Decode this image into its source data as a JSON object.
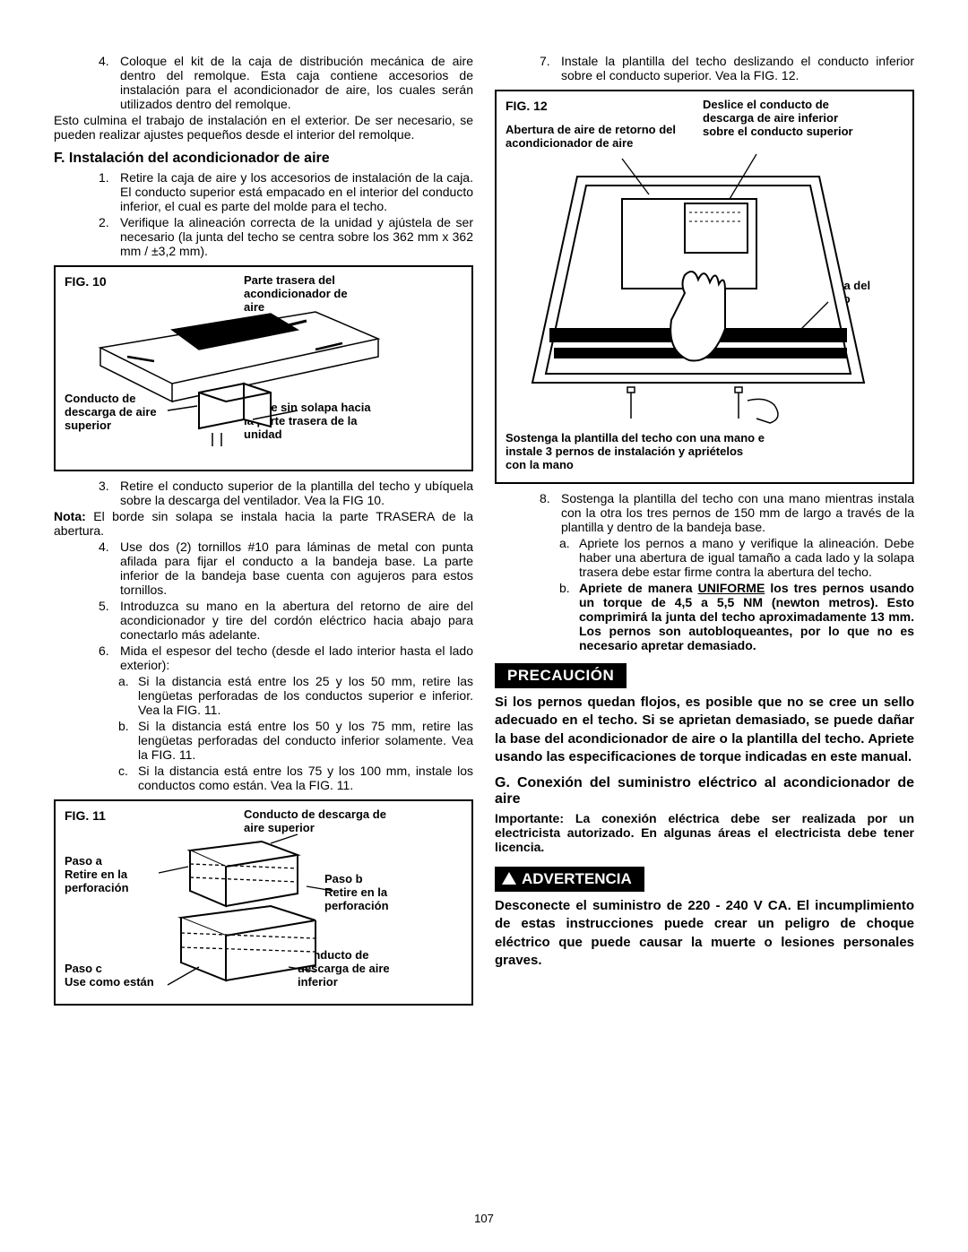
{
  "pageNumber": "107",
  "left": {
    "list4": {
      "num": "4.",
      "text": "Coloque el kit de la caja de distribución mecánica de aire dentro del remolque. Esta caja contiene accesorios de instalación para el acondicionador de aire, los cuales serán utilizados dentro del remolque."
    },
    "paraAfter4": "Esto culmina el trabajo de instalación en el exterior. De ser necesario, se pueden realizar ajustes pequeños desde el interior del remolque.",
    "sectionF": "F. Instalación del acondicionador de aire",
    "f1": {
      "num": "1.",
      "text": "Retire la caja de aire y los accesorios de instalación de la caja. El conducto superior está empacado en el interior del conducto inferior, el cual es parte del molde para el techo."
    },
    "f2": {
      "num": "2.",
      "text": "Verifique la alineación correcta de la unidad y ajústela de ser necesario (la junta del techo se centra sobre los 362 mm x 362 mm / ±3,2 mm)."
    },
    "fig10": {
      "title": "FIG. 10",
      "lblRear": "Parte trasera del acondicionador de aire",
      "lblDuct": "Conducto de descarga de aire superior",
      "lblEdge": "Borde sin solapa hacia la parte trasera de la unidad"
    },
    "f3": {
      "num": "3.",
      "text": "Retire el conducto superior de la plantilla del techo y ubíquela sobre la descarga del ventilador. Vea la FIG 10."
    },
    "nota": "Nota: El borde sin solapa se instala hacia la parte TRASERA de la abertura.",
    "f4": {
      "num": "4.",
      "text": "Use dos (2) tornillos #10 para láminas de metal con punta afilada para fijar el conducto a la bandeja base. La parte inferior de la bandeja base cuenta con agujeros para estos tornillos."
    },
    "f5": {
      "num": "5.",
      "text": "Introduzca su mano en la abertura del retorno de aire del acondicionador y tire del cordón eléctrico hacia abajo para conectarlo más adelante."
    },
    "f6": {
      "num": "6.",
      "text": "Mida el espesor del techo (desde el lado interior hasta el lado exterior):"
    },
    "f6a": {
      "letter": "a.",
      "text": "Si la distancia está entre los 25 y los 50 mm, retire las lengüetas perforadas de los conductos superior e inferior. Vea la FIG. 11."
    },
    "f6b": {
      "letter": "b.",
      "text": "Si la distancia está entre los 50 y los 75 mm, retire las lengüetas perforadas del conducto inferior solamente. Vea la FIG. 11."
    },
    "f6c": {
      "letter": "c.",
      "text": "Si la distancia está entre los 75 y los 100 mm, instale los conductos como están. Vea la FIG. 11."
    },
    "fig11": {
      "title": "FIG. 11",
      "lblUpper": "Conducto de descarga de aire superior",
      "lblA": "Paso a\nRetire en la perforación",
      "lblB": "Paso b\nRetire en la perforación",
      "lblC": "Paso c\nUse como están",
      "lblLower": "Conducto de descarga de aire inferior"
    }
  },
  "right": {
    "f7": {
      "num": "7.",
      "text": "Instale la plantilla del techo deslizando el conducto inferior sobre el conducto superior. Vea la FIG. 12."
    },
    "fig12": {
      "title": "FIG. 12",
      "lblReturn": "Abertura de aire de retorno del acondicionador de aire",
      "lblSlide": "Deslice el conducto de descarga de aire inferior sobre el conducto superior",
      "lblGasket": "Junta del techo",
      "lblHold": "Sostenga la plantilla del techo con una mano e instale 3 pernos de instalación y apriételos con la mano"
    },
    "f8": {
      "num": "8.",
      "text": "Sostenga la plantilla del techo con una mano mientras instala con la otra los tres pernos de 150 mm de largo a través de la plantilla y dentro de la bandeja base."
    },
    "f8a": {
      "letter": "a.",
      "text": "Apriete los pernos a mano y verifique la alineación. Debe haber una abertura de igual tamaño a cada lado y la solapa trasera debe estar firme contra la abertura del techo."
    },
    "f8b": {
      "letter": "b.",
      "textPre": "Apriete de manera ",
      "uniforme": "UNIFORME",
      "textPost": " los tres pernos usando un torque de 4,5 a 5,5 NM (newton metros). Esto comprimirá la junta del techo aproximadamente 13 mm. Los pernos son autobloqueantes, por lo que no es necesario apretar demasiado."
    },
    "precaucion": "PRECAUCIÓN",
    "precaucionText": "Si los pernos quedan flojos, es posible que no se cree un sello adecuado en el techo. Si se aprietan demasiado, se puede dañar la base del acondicionador de aire o la plantilla del techo. Apriete usando las especificaciones de torque indicadas en este manual.",
    "sectionG": "G. Conexión del suministro eléctrico al acondicionador de aire",
    "importante": "Importante: La conexión eléctrica debe ser realizada por un electricista autorizado. En algunas áreas el electricista debe tener licencia.",
    "advertencia": "ADVERTENCIA",
    "advertenciaText": "Desconecte el suministro de 220 - 240 V CA. El incumplimiento de estas instrucciones puede crear un peligro de choque eléctrico que puede causar la muerte o lesiones personales graves."
  }
}
